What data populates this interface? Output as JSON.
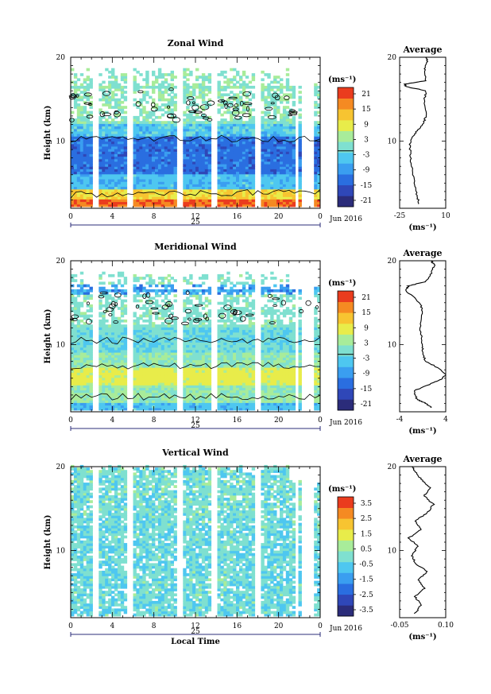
{
  "chart_data": [
    {
      "type": "heatmap",
      "title": "Zonal Wind",
      "ylabel": "Height (km)",
      "ylim": [
        2,
        20
      ],
      "yticks": [
        "10",
        "20"
      ],
      "xlim": [
        0,
        24
      ],
      "xticks": [
        "0",
        "4",
        "8",
        "12",
        "16",
        "20",
        "0"
      ],
      "date_label": "25",
      "month_label": "Jun 2016",
      "colorbar_unit": "(ms⁻¹)",
      "colorbar_ticks": [
        "21",
        "15",
        "9",
        "3",
        "-3",
        "-9",
        "-15",
        "-21"
      ],
      "colorbar_range": [
        -24,
        24
      ],
      "profile": {
        "title": "Average",
        "unit": "(ms⁻¹)",
        "xticks": [
          "-25",
          "10"
        ],
        "xlim": [
          -25,
          10
        ],
        "yticks": [
          "10",
          "20"
        ],
        "points": [
          [
            -10,
            2.5
          ],
          [
            -12,
            3.5
          ],
          [
            -14,
            5
          ],
          [
            -16,
            7
          ],
          [
            -17,
            8.5
          ],
          [
            -17,
            10
          ],
          [
            -13,
            11
          ],
          [
            -7,
            12
          ],
          [
            -5,
            13
          ],
          [
            -6,
            15
          ],
          [
            -5,
            16
          ],
          [
            -20,
            16.5
          ],
          [
            -21,
            16.8
          ],
          [
            -5,
            17.2
          ],
          [
            -6,
            18.5
          ],
          [
            -4,
            19.5
          ],
          [
            -5,
            20
          ]
        ]
      }
    },
    {
      "type": "heatmap",
      "title": "Meridional Wind",
      "ylabel": "Height (km)",
      "ylim": [
        2,
        20
      ],
      "yticks": [
        "10",
        "20"
      ],
      "xlim": [
        0,
        24
      ],
      "xticks": [
        "0",
        "4",
        "8",
        "12",
        "16",
        "20",
        "0"
      ],
      "date_label": "25",
      "month_label": "Jun 2016",
      "colorbar_unit": "(ms⁻¹)",
      "colorbar_ticks": [
        "21",
        "15",
        "9",
        "3",
        "-3",
        "-9",
        "-15",
        "-21"
      ],
      "colorbar_range": [
        -24,
        24
      ],
      "profile": {
        "title": "Average",
        "unit": "(ms⁻¹)",
        "xticks": [
          "-4",
          "4"
        ],
        "xlim": [
          -4,
          4
        ],
        "yticks": [
          "10",
          "20"
        ],
        "points": [
          [
            1.5,
            2.5
          ],
          [
            0.5,
            3
          ],
          [
            -1,
            3.5
          ],
          [
            -1.5,
            4.5
          ],
          [
            2,
            5.5
          ],
          [
            3.5,
            6
          ],
          [
            4,
            6.5
          ],
          [
            2,
            7.5
          ],
          [
            0.5,
            8
          ],
          [
            0,
            9
          ],
          [
            0,
            10
          ],
          [
            -0.5,
            12
          ],
          [
            0,
            14
          ],
          [
            -0.5,
            15
          ],
          [
            -3,
            16.5
          ],
          [
            -2.5,
            17
          ],
          [
            0.5,
            17.5
          ],
          [
            1.5,
            18.5
          ],
          [
            2,
            19.5
          ],
          [
            1.5,
            20
          ]
        ]
      }
    },
    {
      "type": "heatmap",
      "title": "Vertical Wind",
      "ylabel": "Height (km)",
      "xlabel": "Local Time",
      "ylim": [
        2,
        20
      ],
      "yticks": [
        "10",
        "20"
      ],
      "xlim": [
        0,
        24
      ],
      "xticks": [
        "0",
        "4",
        "8",
        "12",
        "16",
        "20",
        "0"
      ],
      "date_label": "25",
      "month_label": "Jun 2016",
      "colorbar_unit": "(ms⁻¹)",
      "colorbar_ticks": [
        "3.5",
        "2.5",
        "1.5",
        "0.5",
        "-0.5",
        "-1.5",
        "-2.5",
        "-3.5"
      ],
      "colorbar_range": [
        -4,
        4
      ],
      "profile": {
        "title": "Average",
        "unit": "(ms⁻¹)",
        "xticks": [
          "-0.05",
          "0.10"
        ],
        "xlim": [
          -0.05,
          0.1
        ],
        "yticks": [
          "10",
          "20"
        ],
        "points": [
          [
            0.0,
            2.5
          ],
          [
            0.02,
            3.5
          ],
          [
            0.0,
            4.5
          ],
          [
            0.03,
            5.5
          ],
          [
            0.01,
            6.5
          ],
          [
            0.04,
            7.5
          ],
          [
            0.0,
            8.5
          ],
          [
            -0.01,
            9.5
          ],
          [
            0.01,
            10.5
          ],
          [
            -0.02,
            11.5
          ],
          [
            0.02,
            12.5
          ],
          [
            0.0,
            13.5
          ],
          [
            0.04,
            14.5
          ],
          [
            0.06,
            15.5
          ],
          [
            0.03,
            16.5
          ],
          [
            0.05,
            17.5
          ],
          [
            0.02,
            18.5
          ],
          [
            0.0,
            19.5
          ],
          [
            -0.01,
            20
          ]
        ]
      }
    }
  ],
  "colors": {
    "scale": [
      "#2b2c7a",
      "#2f47b8",
      "#2a6ee0",
      "#3a9ef0",
      "#4ec7f0",
      "#7fe0d0",
      "#a8ec9a",
      "#e8ec4a",
      "#f7c431",
      "#f58a22",
      "#ea3c1e"
    ]
  }
}
